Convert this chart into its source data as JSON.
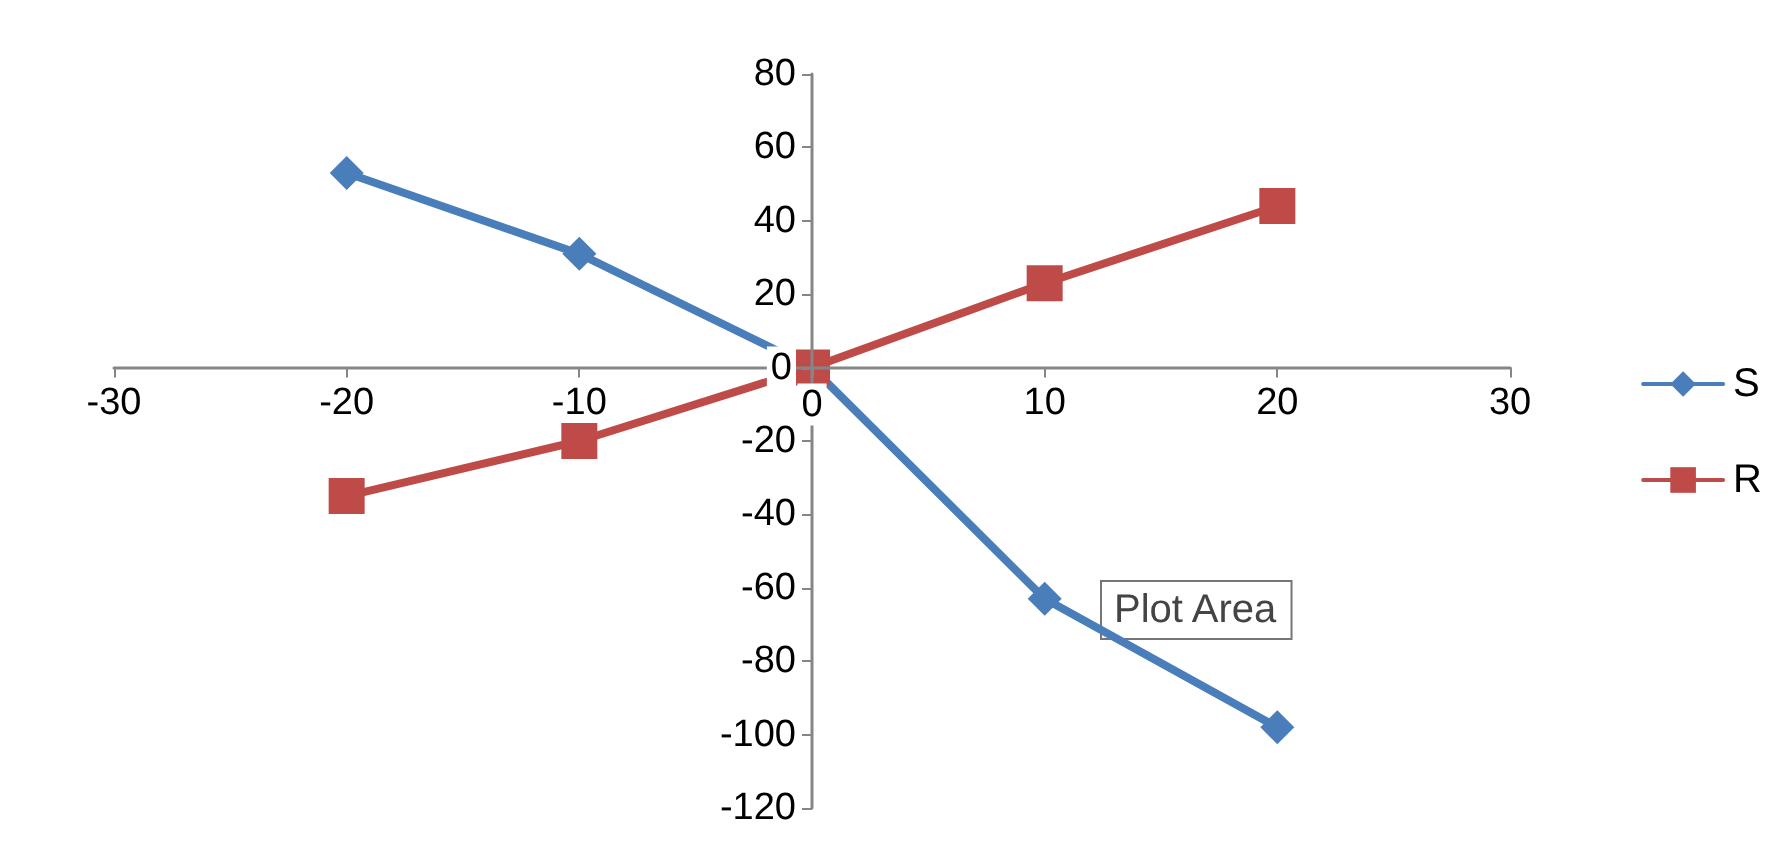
{
  "chart_data": {
    "type": "line",
    "x": [
      -20,
      -10,
      0,
      10,
      20
    ],
    "series": [
      {
        "name": "S",
        "color": "#4a7ebb",
        "marker": "diamond",
        "values": [
          53,
          31,
          0,
          -63,
          -98
        ]
      },
      {
        "name": "R",
        "color": "#be4b48",
        "marker": "square",
        "values": [
          -35,
          -20,
          0,
          23,
          44
        ]
      }
    ],
    "xlim": [
      -30,
      30
    ],
    "xticks": [
      -30,
      -20,
      -10,
      0,
      10,
      20,
      30
    ],
    "ylim": [
      -120,
      80
    ],
    "yticks": [
      -120,
      -100,
      -80,
      -60,
      -40,
      -20,
      0,
      20,
      40,
      60,
      80
    ],
    "grid": false,
    "legend": "right",
    "line_style": "solid",
    "annotations": [
      "Plot Area"
    ]
  }
}
